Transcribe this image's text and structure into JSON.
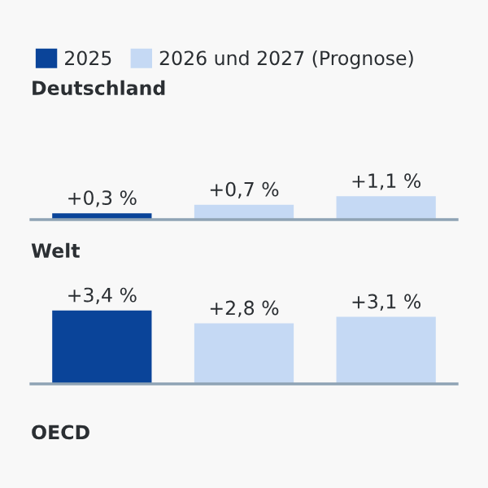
{
  "chart_data": [
    {
      "type": "bar",
      "title": "Deutschland",
      "stacked": true,
      "categories": [
        null,
        null,
        null
      ],
      "legend": "top left",
      "tick_labels": false,
      "grid": false,
      "series": [
        {
          "name": "2025",
          "color": "#0a4499",
          "values": [
            0.3,
            null,
            null
          ],
          "value_labels": [
            "+0,3 %",
            null,
            null
          ]
        },
        {
          "name": "2026 und 2027 (Prognose)",
          "color": "#c5d9f4",
          "values": [
            null,
            0.7,
            1.1
          ],
          "value_labels": [
            null,
            "+0,7 %",
            "+1,1 %"
          ]
        }
      ]
    },
    {
      "type": "bar",
      "title": "Welt",
      "stacked": true,
      "categories": [
        null,
        null,
        null
      ],
      "tick_labels": false,
      "grid": false,
      "series": [
        {
          "color": "#0a4499",
          "values": [
            3.4,
            null,
            null
          ],
          "value_labels": [
            "+3,4 %",
            null,
            null
          ]
        },
        {
          "color": "#c5d9f4",
          "values": [
            null,
            2.8,
            3.1
          ],
          "value_labels": [
            null,
            "+2,8 %",
            "+3,1 %"
          ]
        }
      ]
    },
    {
      "type": "other",
      "title": "OECD"
    }
  ]
}
